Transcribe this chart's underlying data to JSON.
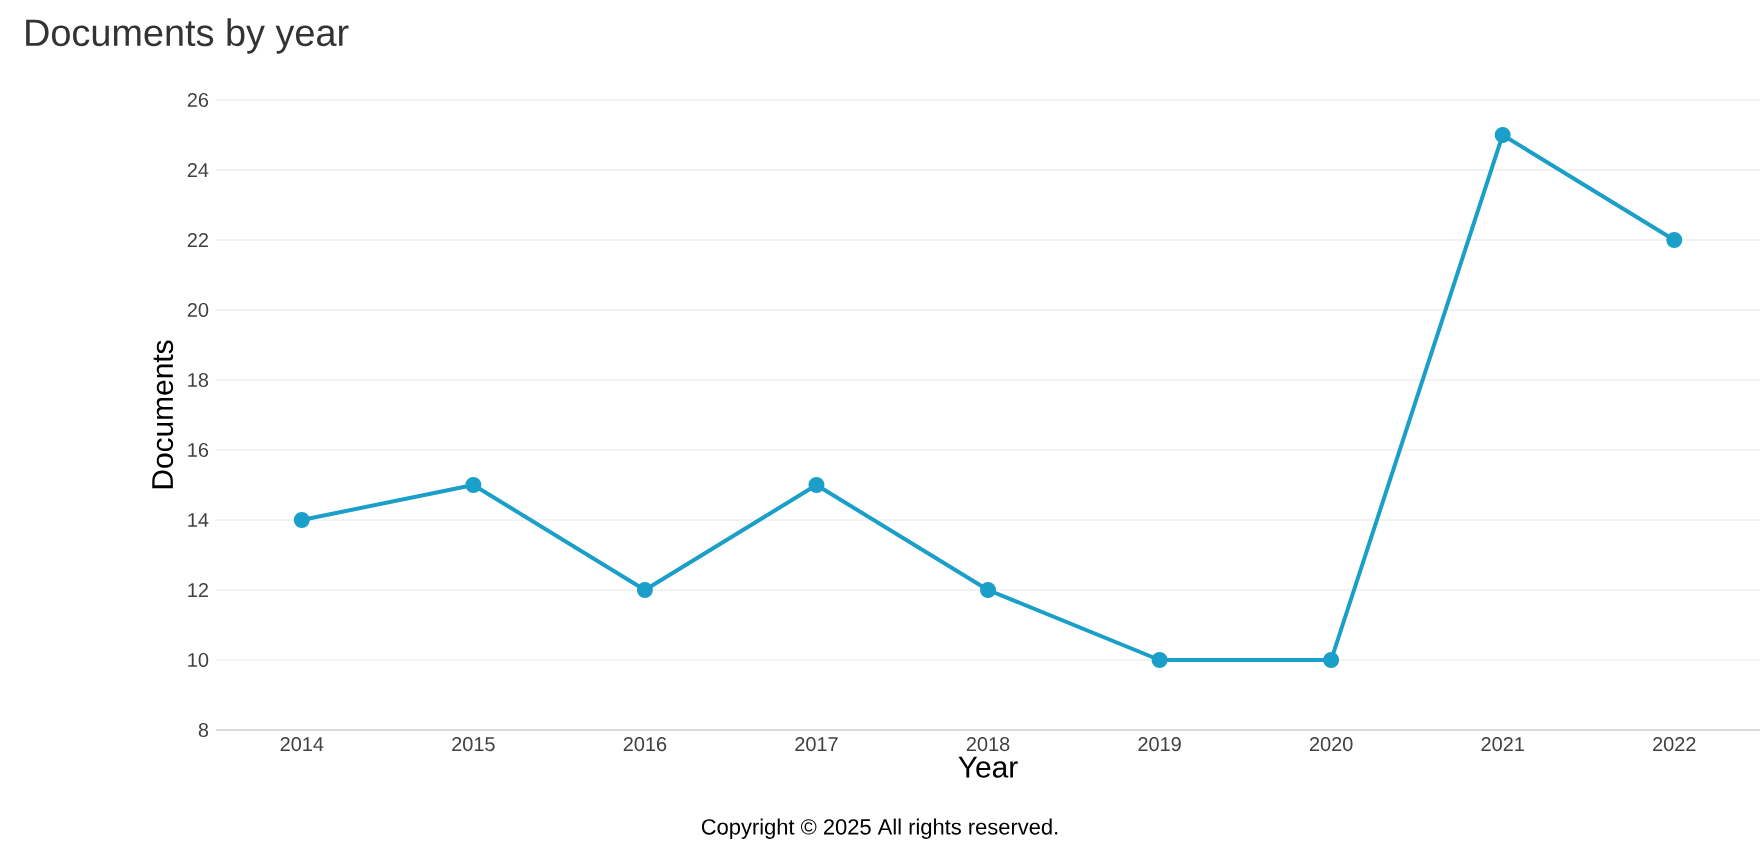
{
  "chart_data": {
    "type": "line",
    "title": "Documents by year",
    "xlabel": "Year",
    "ylabel": "Documents",
    "categories": [
      "2014",
      "2015",
      "2016",
      "2017",
      "2018",
      "2019",
      "2020",
      "2021",
      "2022"
    ],
    "values": [
      14,
      15,
      12,
      15,
      12,
      10,
      10,
      25,
      22
    ],
    "color": "#1a9fc9",
    "marker": "circle",
    "grid": "y",
    "ylim": [
      8,
      26
    ],
    "yticks": [
      8,
      10,
      12,
      14,
      16,
      18,
      20,
      22,
      24,
      26
    ],
    "annotations": [
      "Copyright © 2025 All rights reserved."
    ]
  }
}
